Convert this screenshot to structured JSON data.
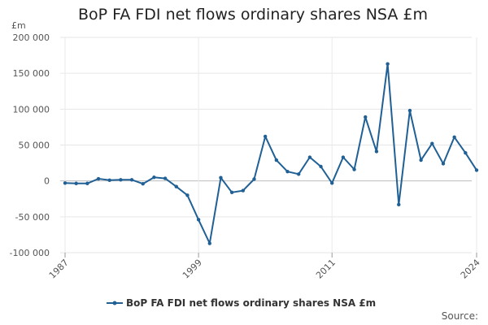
{
  "chart_data": {
    "type": "line",
    "title": "BoP FA FDI net flows ordinary shares NSA £m",
    "ylabel": "£m",
    "xlabel": "",
    "ylim": [
      -100000,
      200000
    ],
    "xlim": [
      1987,
      2024
    ],
    "grid": true,
    "legend_position": "bottom",
    "y_ticks": [
      {
        "value": 200000,
        "label": "200 000"
      },
      {
        "value": 150000,
        "label": "150 000"
      },
      {
        "value": 100000,
        "label": "100 000"
      },
      {
        "value": 50000,
        "label": "50 000"
      },
      {
        "value": 0,
        "label": "0"
      },
      {
        "value": -50000,
        "label": "-50 000"
      },
      {
        "value": -100000,
        "label": "-100 000"
      }
    ],
    "x_ticks": [
      {
        "value": 1987,
        "label": "1987"
      },
      {
        "value": 1999,
        "label": "1999"
      },
      {
        "value": 2011,
        "label": "2011"
      },
      {
        "value": 2024,
        "label": "2024"
      }
    ],
    "series": [
      {
        "name": "BoP FA FDI net flows ordinary shares NSA £m",
        "color": "#206095",
        "x": [
          1987,
          1988,
          1989,
          1990,
          1991,
          1992,
          1993,
          1994,
          1995,
          1996,
          1997,
          1998,
          1999,
          2000,
          2001,
          2002,
          2003,
          2004,
          2005,
          2006,
          2007,
          2008,
          2009,
          2010,
          2011,
          2012,
          2013,
          2014,
          2015,
          2016,
          2017,
          2018,
          2019,
          2020,
          2021,
          2022,
          2023,
          2024
        ],
        "values": [
          -3000,
          -3500,
          -3500,
          3000,
          1000,
          1500,
          1500,
          -4000,
          5000,
          3500,
          -8000,
          -20000,
          -54000,
          -87000,
          4500,
          -16000,
          -13500,
          2500,
          62000,
          29000,
          13000,
          9500,
          33000,
          20000,
          -3000,
          33000,
          16000,
          89000,
          41000,
          163000,
          -33000,
          98000,
          29000,
          52000,
          24000,
          61000,
          39000,
          15000
        ]
      }
    ]
  },
  "legend": {
    "label": "BoP FA FDI net flows ordinary shares NSA £m"
  },
  "source": {
    "label": "Source:"
  }
}
